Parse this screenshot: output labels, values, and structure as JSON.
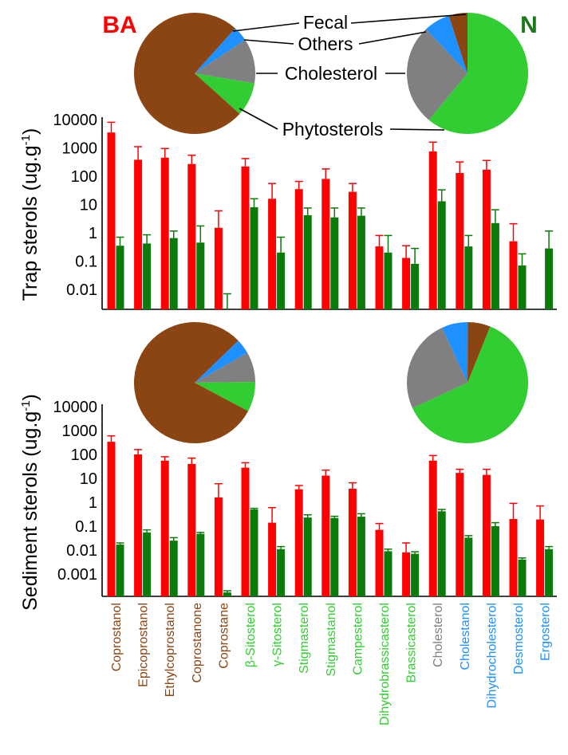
{
  "labels": {
    "site_left": "BA",
    "site_right": "N",
    "callout_fecal": "Fecal",
    "callout_others": "Others",
    "callout_cholesterol": "Cholesterol",
    "callout_phytosterols": "Phytosterols"
  },
  "colors": {
    "site_left": "#ff0000",
    "site_right": "#1a7a1a",
    "fecal": "#8b4513",
    "others": "#1e90ff",
    "cholesterol": "#808080",
    "phytosterols": "#32cd32",
    "bar_ba": "#ff0000",
    "bar_n": "#0a7a0a"
  },
  "chart_data": [
    {
      "type": "pie",
      "panel": "Trap",
      "site": "BA",
      "slices": [
        {
          "name": "Fecal",
          "value": 75
        },
        {
          "name": "Others",
          "value": 4
        },
        {
          "name": "Cholesterol",
          "value": 12
        },
        {
          "name": "Phytosterols",
          "value": 9
        }
      ]
    },
    {
      "type": "pie",
      "panel": "Trap",
      "site": "N",
      "slices": [
        {
          "name": "Fecal",
          "value": 5
        },
        {
          "name": "Others",
          "value": 7
        },
        {
          "name": "Cholesterol",
          "value": 27
        },
        {
          "name": "Phytosterols",
          "value": 61
        }
      ]
    },
    {
      "type": "bar",
      "ylabel": "Trap sterols (ug.g",
      "ylabel_sup": "-1",
      "ylabel_end": ")",
      "yscale": "log",
      "ylim": [
        0.002,
        10000
      ],
      "yticks": [
        "10000",
        "1000",
        "100",
        "10",
        "1",
        "0.1",
        "0.01"
      ],
      "categories": [
        "Coprostanol",
        "Epicoprostanol",
        "Ethylcoprostanol",
        "Coprostanone",
        "Coprostane",
        "β-Sitosterol",
        "γ-Sitosterol",
        "Stigmasterol",
        "Stigmastanol",
        "Campesterol",
        "Dihydrobrassicasterol",
        "Brassicasterol",
        "Cholesterol",
        "Cholestanol",
        "Dihydrocholesterol",
        "Desmosterol",
        "Ergosterol"
      ],
      "series": [
        {
          "name": "BA",
          "values": [
            3500,
            380,
            450,
            270,
            1.5,
            220,
            16,
            35,
            80,
            28,
            0.33,
            0.13,
            750,
            130,
            170,
            0.5,
            null
          ],
          "err_upper": [
            8000,
            1100,
            950,
            550,
            6,
            420,
            55,
            65,
            180,
            55,
            0.8,
            0.35,
            1600,
            320,
            360,
            2.1,
            null
          ]
        },
        {
          "name": "N",
          "values": [
            0.35,
            0.42,
            0.65,
            0.45,
            null,
            8,
            0.2,
            4.2,
            3.5,
            4,
            0.2,
            0.08,
            13,
            0.33,
            2.2,
            0.07,
            0.28
          ],
          "err_upper": [
            0.7,
            0.85,
            1.15,
            1.75,
            0.007,
            16,
            0.7,
            7.5,
            7.5,
            7.5,
            0.8,
            0.28,
            33,
            0.8,
            6.5,
            0.18,
            1.15
          ]
        }
      ]
    },
    {
      "type": "pie",
      "panel": "Sediment",
      "site": "BA",
      "slices": [
        {
          "name": "Fecal",
          "value": 80
        },
        {
          "name": "Others",
          "value": 4
        },
        {
          "name": "Cholesterol",
          "value": 8
        },
        {
          "name": "Phytosterols",
          "value": 8
        }
      ]
    },
    {
      "type": "pie",
      "panel": "Sediment",
      "site": "N",
      "slices": [
        {
          "name": "Fecal",
          "value": 6
        },
        {
          "name": "Others",
          "value": 7
        },
        {
          "name": "Cholesterol",
          "value": 25
        },
        {
          "name": "Phytosterols",
          "value": 62
        }
      ]
    },
    {
      "type": "bar",
      "ylabel": "Sediment sterols (ug.g",
      "ylabel_sup": "-1",
      "ylabel_end": ")",
      "yscale": "log",
      "ylim": [
        0.00015,
        10000
      ],
      "yticks": [
        "10000",
        "1000",
        "100",
        "10",
        "1",
        "0.1",
        "0.01",
        "0.001"
      ],
      "categories": [
        "Coprostanol",
        "Epicoprostanol",
        "Ethylcoprostanol",
        "Coprostanone",
        "Coprostane",
        "β-Sitosterol",
        "γ-Sitosterol",
        "Stigmasterol",
        "Stigmastanol",
        "Campesterol",
        "Dihydrobrassicasterol",
        "Brassicasterol",
        "Cholesterol",
        "Cholestanol",
        "Dihydrocholesterol",
        "Desmosterol",
        "Ergosterol"
      ],
      "series": [
        {
          "name": "BA",
          "values": [
            340,
            100,
            55,
            40,
            1.6,
            28,
            0.14,
            3.5,
            13,
            3.7,
            0.07,
            0.008,
            55,
            17,
            14,
            0.2,
            0.19
          ],
          "err_upper": [
            600,
            160,
            80,
            70,
            6,
            45,
            0.6,
            5,
            22,
            6.5,
            0.13,
            0.02,
            90,
            24,
            24,
            0.9,
            0.7
          ]
        },
        {
          "name": "N",
          "values": [
            0.017,
            0.055,
            0.025,
            0.048,
            0.00017,
            0.5,
            0.011,
            0.23,
            0.22,
            0.25,
            0.009,
            0.007,
            0.42,
            0.033,
            0.1,
            0.004,
            0.011
          ],
          "err_upper": [
            0.02,
            0.07,
            0.033,
            0.055,
            0.0002,
            0.56,
            0.014,
            0.3,
            0.26,
            0.33,
            0.011,
            0.0085,
            0.5,
            0.04,
            0.14,
            0.0047,
            0.014
          ]
        }
      ]
    }
  ],
  "category_colors": [
    "#8b4513",
    "#8b4513",
    "#8b4513",
    "#8b4513",
    "#8b4513",
    "#32cd32",
    "#32cd32",
    "#32cd32",
    "#32cd32",
    "#32cd32",
    "#32cd32",
    "#32cd32",
    "#808080",
    "#1e90ff",
    "#1e90ff",
    "#1e90ff",
    "#1e90ff"
  ]
}
